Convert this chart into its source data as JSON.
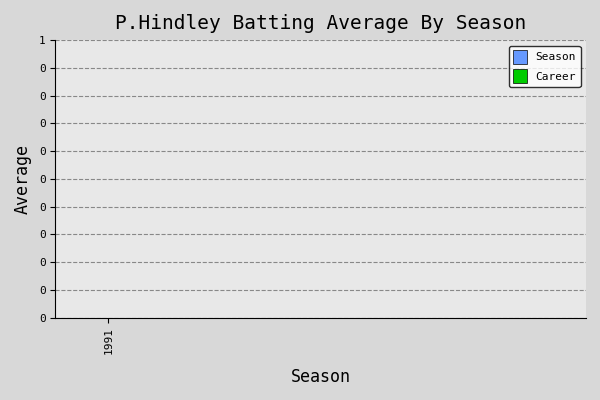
{
  "title": "P.Hindley Batting Average By Season",
  "xlabel": "Season",
  "ylabel": "Average",
  "x_ticks": [
    1991
  ],
  "x_tick_labels": [
    "1991"
  ],
  "ylim": [
    0,
    1.0
  ],
  "xlim": [
    1990.5,
    1995.5
  ],
  "ytick_values": [
    0.0,
    0.1,
    0.2,
    0.3,
    0.4,
    0.5,
    0.6,
    0.7,
    0.8,
    0.9,
    1.0
  ],
  "season_color": "#6699ff",
  "career_color": "#00cc00",
  "background_color": "#d8d8d8",
  "plot_bg_color": "#e8e8e8",
  "grid_color": "#888888",
  "legend_labels": [
    "Season",
    "Career"
  ],
  "title_fontsize": 14,
  "axis_label_fontsize": 12,
  "tick_fontsize": 8,
  "font_family": "monospace"
}
